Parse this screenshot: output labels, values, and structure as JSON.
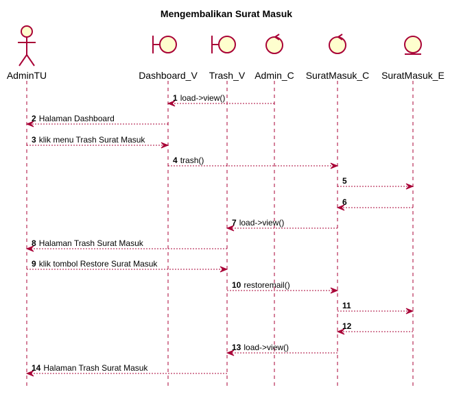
{
  "diagram": {
    "title": "Mengembalikan Surat Masuk",
    "participants": [
      {
        "id": "AdminTU",
        "label": "AdminTU",
        "kind": "actor"
      },
      {
        "id": "Dashboard_V",
        "label": "Dashboard_V",
        "kind": "boundary"
      },
      {
        "id": "Trash_V",
        "label": "Trash_V",
        "kind": "boundary"
      },
      {
        "id": "Admin_C",
        "label": "Admin_C",
        "kind": "control"
      },
      {
        "id": "SuratMasuk_C",
        "label": "SuratMasuk_C",
        "kind": "control"
      },
      {
        "id": "SuratMasuk_E",
        "label": "SuratMasuk_E",
        "kind": "entity"
      }
    ],
    "messages": [
      {
        "num": "1",
        "from": "Admin_C",
        "to": "Dashboard_V",
        "text": "load->view()"
      },
      {
        "num": "2",
        "from": "Dashboard_V",
        "to": "AdminTU",
        "text": "Halaman Dashboard"
      },
      {
        "num": "3",
        "from": "AdminTU",
        "to": "Dashboard_V",
        "text": "klik menu Trash Surat Masuk"
      },
      {
        "num": "4",
        "from": "Dashboard_V",
        "to": "SuratMasuk_C",
        "text": "trash()"
      },
      {
        "num": "5",
        "from": "SuratMasuk_C",
        "to": "SuratMasuk_E",
        "text": ""
      },
      {
        "num": "6",
        "from": "SuratMasuk_E",
        "to": "SuratMasuk_C",
        "text": ""
      },
      {
        "num": "7",
        "from": "SuratMasuk_C",
        "to": "Trash_V",
        "text": "load->view()"
      },
      {
        "num": "8",
        "from": "Trash_V",
        "to": "AdminTU",
        "text": "Halaman Trash Surat Masuk"
      },
      {
        "num": "9",
        "from": "AdminTU",
        "to": "Trash_V",
        "text": "klik tombol Restore Surat Masuk"
      },
      {
        "num": "10",
        "from": "Trash_V",
        "to": "SuratMasuk_C",
        "text": "restoremail()"
      },
      {
        "num": "11",
        "from": "SuratMasuk_C",
        "to": "SuratMasuk_E",
        "text": ""
      },
      {
        "num": "12",
        "from": "SuratMasuk_E",
        "to": "SuratMasuk_C",
        "text": ""
      },
      {
        "num": "13",
        "from": "SuratMasuk_C",
        "to": "Trash_V",
        "text": "load->view()"
      },
      {
        "num": "14",
        "from": "Trash_V",
        "to": "AdminTU",
        "text": "Halaman Trash Surat Masuk"
      }
    ],
    "colors": {
      "line": "#a80036",
      "fill": "#fefece"
    }
  }
}
